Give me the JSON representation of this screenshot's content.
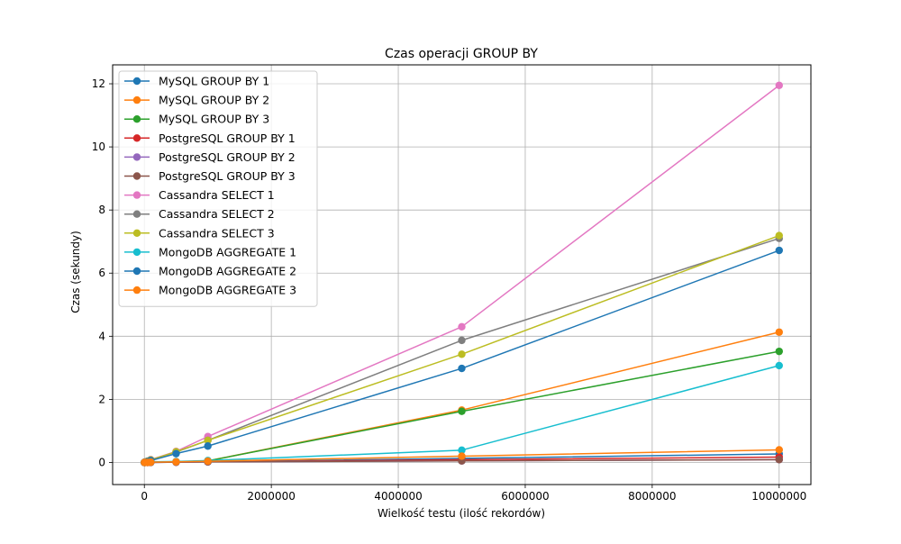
{
  "chart_data": {
    "type": "line",
    "title": "Czas operacji GROUP BY",
    "xlabel": "Wielkość testu (ilość rekordów)",
    "ylabel": "Czas (sekundy)",
    "xlim": [
      -500000,
      10500000
    ],
    "ylim": [
      -0.7,
      12.6
    ],
    "xticks": [
      0,
      2000000,
      4000000,
      6000000,
      8000000,
      10000000
    ],
    "xtick_labels": [
      "0",
      "2000000",
      "4000000",
      "6000000",
      "8000000",
      "10000000"
    ],
    "yticks": [
      0,
      2,
      4,
      6,
      8,
      10,
      12
    ],
    "ytick_labels": [
      "0",
      "2",
      "4",
      "6",
      "8",
      "10",
      "12"
    ],
    "grid": true,
    "legend_position": "top-left",
    "x": [
      1000,
      10000,
      50000,
      100000,
      500000,
      1000000,
      5000000,
      10000000
    ],
    "series": [
      {
        "name": "MySQL GROUP BY 1",
        "color": "#1f77b4",
        "values": [
          0.0,
          0.0,
          0.0,
          0.01,
          0.01,
          0.02,
          0.13,
          0.27
        ]
      },
      {
        "name": "MySQL GROUP BY 2",
        "color": "#ff7f0e",
        "values": [
          0.0,
          0.0,
          0.01,
          0.02,
          0.02,
          0.05,
          1.66,
          4.13
        ]
      },
      {
        "name": "MySQL GROUP BY 3",
        "color": "#2ca02c",
        "values": [
          0.0,
          0.0,
          0.01,
          0.02,
          0.02,
          0.05,
          1.62,
          3.52
        ]
      },
      {
        "name": "PostgreSQL GROUP BY 1",
        "color": "#d62728",
        "values": [
          0.0,
          0.0,
          0.0,
          0.01,
          0.01,
          0.02,
          0.09,
          0.17
        ]
      },
      {
        "name": "PostgreSQL GROUP BY 2",
        "color": "#9467bd",
        "values": [
          0.0,
          0.0,
          0.0,
          0.0,
          0.01,
          0.02,
          0.05,
          0.09
        ]
      },
      {
        "name": "PostgreSQL GROUP BY 3",
        "color": "#8c564b",
        "values": [
          0.0,
          0.0,
          0.0,
          0.0,
          0.01,
          0.02,
          0.05,
          0.09
        ]
      },
      {
        "name": "Cassandra SELECT 1",
        "color": "#e377c2",
        "values": [
          0.0,
          0.01,
          0.04,
          0.09,
          0.35,
          0.82,
          4.3,
          11.95
        ]
      },
      {
        "name": "Cassandra SELECT 2",
        "color": "#7f7f7f",
        "values": [
          0.0,
          0.01,
          0.04,
          0.08,
          0.33,
          0.7,
          3.87,
          7.1
        ]
      },
      {
        "name": "Cassandra SELECT 3",
        "color": "#bcbd22",
        "values": [
          0.0,
          0.01,
          0.04,
          0.08,
          0.34,
          0.7,
          3.43,
          7.19
        ]
      },
      {
        "name": "MongoDB AGGREGATE 1",
        "color": "#17becf",
        "values": [
          0.0,
          0.0,
          0.01,
          0.02,
          0.03,
          0.06,
          0.39,
          3.07
        ]
      },
      {
        "name": "MongoDB AGGREGATE 2",
        "color": "#1f77b4",
        "values": [
          0.0,
          0.01,
          0.03,
          0.06,
          0.28,
          0.52,
          2.98,
          6.72
        ]
      },
      {
        "name": "MongoDB AGGREGATE 3",
        "color": "#ff7f0e",
        "values": [
          0.0,
          0.0,
          0.0,
          0.01,
          0.02,
          0.04,
          0.2,
          0.4
        ]
      }
    ]
  }
}
